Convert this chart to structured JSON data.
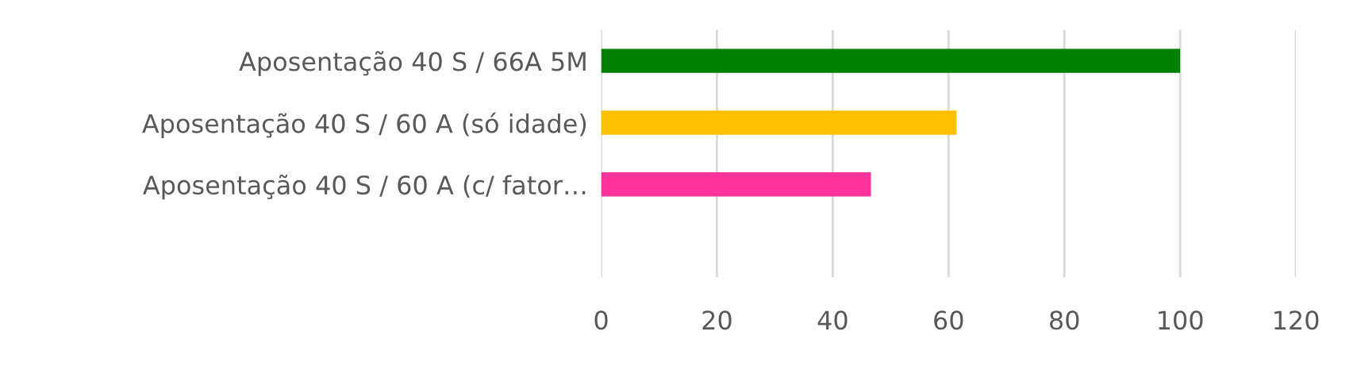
{
  "chart_data": {
    "type": "bar",
    "orientation": "horizontal",
    "categories": [
      "Aposentação 40 S / 66A 5M",
      "Aposentação 40 S / 60 A (só idade)",
      "Aposentação 40 S / 60 A (c/ fator…",
      null
    ],
    "values": [
      100,
      61.4,
      46.6,
      null
    ],
    "colors": [
      "#008000",
      "#ffc000",
      "#ff3399",
      "#ffffff"
    ],
    "xlim": [
      0,
      120
    ],
    "xticks": [
      0,
      20,
      40,
      60,
      80,
      100,
      120
    ],
    "grid": "x",
    "legend": false
  }
}
